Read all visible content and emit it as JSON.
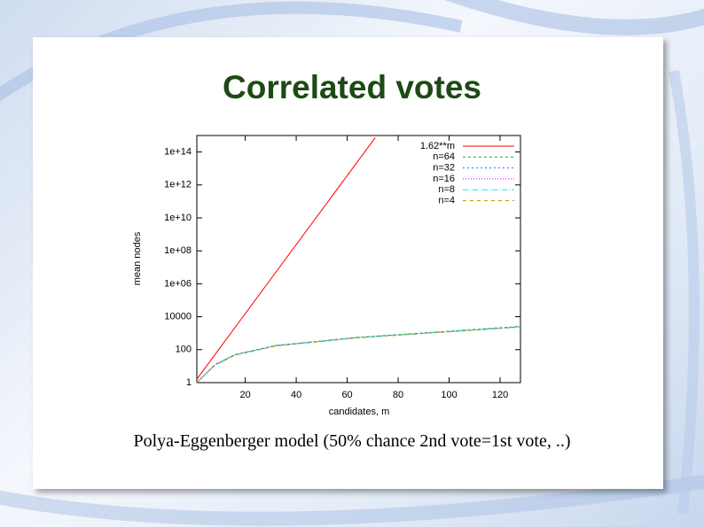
{
  "title": "Correlated votes",
  "caption": "Polya-Eggenberger model (50% chance 2nd vote=1st vote, ..)",
  "chart_data": {
    "type": "line",
    "xlabel": "candidates, m",
    "ylabel": "mean nodes",
    "xlim": [
      1,
      128
    ],
    "xticks": [
      20,
      40,
      60,
      80,
      100,
      120
    ],
    "ylim": [
      1,
      1000000000000000.0
    ],
    "ylog": true,
    "yticks": [
      1,
      100,
      10000,
      {
        "value": 1000000,
        "label": "1e+06"
      },
      {
        "value": 100000000,
        "label": "1e+08"
      },
      {
        "value": 10000000000,
        "label": "1e+10"
      },
      {
        "value": 1000000000000,
        "label": "1e+12"
      },
      {
        "value": 100000000000000,
        "label": "1e+14"
      }
    ],
    "grid": false,
    "legend": "top-right",
    "series": [
      {
        "name": "1.62**m",
        "color": "#ff0000",
        "x": [
          1,
          71
        ],
        "values": [
          1.62,
          740000000000000
        ]
      },
      {
        "name": "n=64",
        "color": "#00c000",
        "x": [
          1,
          8,
          16,
          32,
          64,
          128
        ],
        "values": [
          1,
          12,
          50,
          180,
          560,
          2600
        ]
      },
      {
        "name": "n=32",
        "color": "#0080ff",
        "x": [
          1,
          8,
          16,
          32,
          64,
          128
        ],
        "values": [
          1,
          12,
          50,
          180,
          550,
          2500
        ]
      },
      {
        "name": "n=16",
        "color": "#c000ff",
        "x": [
          1,
          8,
          16,
          32,
          64,
          128
        ],
        "values": [
          1,
          12,
          50,
          175,
          540,
          2450
        ]
      },
      {
        "name": "n=8",
        "color": "#00eeee",
        "x": [
          1,
          8,
          16,
          32,
          64,
          128
        ],
        "values": [
          1,
          11,
          48,
          170,
          530,
          2400
        ]
      },
      {
        "name": "n=4",
        "color": "#c0a000",
        "x": [
          1,
          8,
          16,
          32,
          64,
          128
        ],
        "values": [
          1,
          11,
          46,
          165,
          520,
          2350
        ]
      }
    ]
  }
}
